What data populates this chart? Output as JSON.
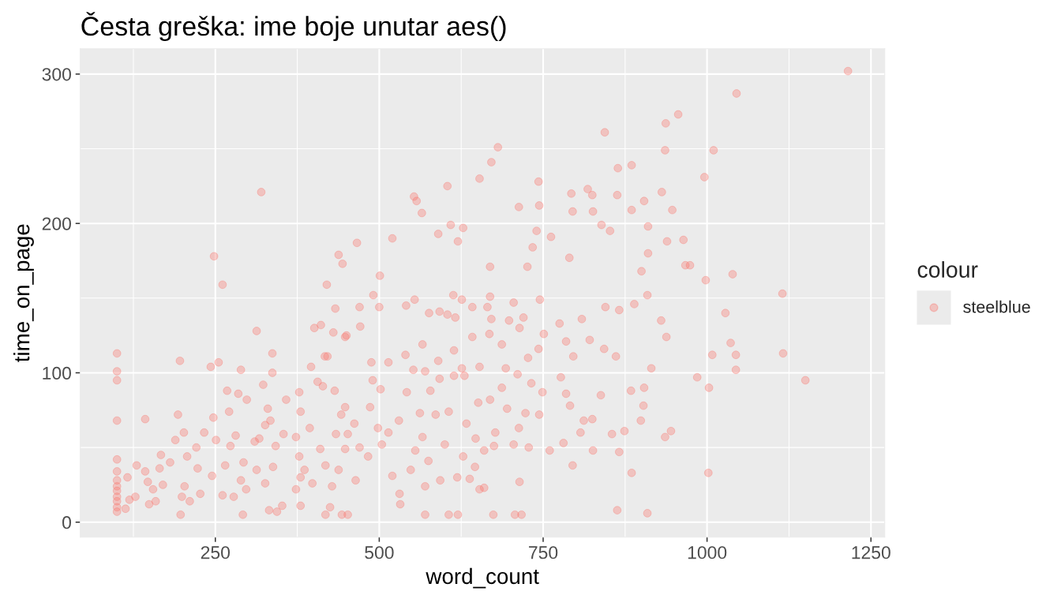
{
  "chart_data": {
    "type": "scatter",
    "title": "Česta greška: ime boje unutar aes()",
    "xlabel": "word_count",
    "ylabel": "time_on_page",
    "legend_title": "colour",
    "series": [
      {
        "name": "steelblue",
        "color": "#f8766d",
        "x": [
          1215,
          1045,
          956,
          937,
          936,
          1010,
          996,
          885,
          864,
          863,
          931,
          904,
          885,
          947,
          910,
          939,
          964,
          910,
          967,
          974,
          1039,
          998,
          1115,
          900,
          844,
          681,
          671,
          653,
          743,
          604,
          553,
          557,
          565,
          713,
          744,
          793,
          818,
          825,
          795,
          826,
          839,
          852,
          790,
          609,
          628,
          590,
          620,
          520,
          466,
          740,
          762,
          734,
          501,
          669,
          726,
          320,
          248,
          261,
          438,
          444,
          420,
          1028,
          1036,
          1044,
          1044,
          1008,
          1003,
          985,
          1116,
          1150,
          866,
          889,
          909,
          930,
          938,
          915,
          884,
          904,
          903,
          899,
          874,
          945,
          936,
          866,
          885,
          1002,
          863,
          909,
          861,
          843,
          775,
          809,
          845,
          785,
          821,
          751,
          796,
          777,
          785,
          791,
          838,
          812,
          825,
          807,
          855,
          781,
          760,
          826,
          795,
          743,
          727,
          720,
          745,
          705,
          698,
          714,
          665,
          669,
          671,
          642,
          626,
          613,
          604,
          616,
          592,
          576,
          554,
          541,
          500,
          491,
          470,
          471,
          450,
          488,
          514,
          540,
          566,
          590,
          614,
          642,
          668,
          687,
          552,
          570,
          626,
          653,
          693,
          490,
          502,
          542,
          578,
          592,
          614,
          630,
          651,
          669,
          687,
          711,
          732,
          749,
          723,
          744,
          713,
          695,
          606,
          633,
          647,
          586,
          562,
          530,
          514,
          486,
          462,
          452,
          498,
          570,
          606,
          620,
          674,
          707,
          717,
          452,
          531,
          532,
          570,
          653,
          660,
          714,
          593,
          619,
          638,
          520,
          464,
          548,
          575,
          628,
          646,
          660,
          675,
          705,
          728,
          600,
          555,
          504,
          470,
          483,
          677,
          566,
          100,
          100,
          100,
          100,
          100,
          100,
          100,
          100,
          100,
          100,
          100,
          100,
          100,
          196,
          143,
          193,
          243,
          255,
          313,
          337,
          337,
          289,
          401,
          411,
          433,
          430,
          417,
          268,
          285,
          323,
          271,
          247,
          189,
          167,
          130,
          116,
          113,
          119,
          128,
          149,
          159,
          147,
          155,
          143,
          170,
          199,
          197,
          211,
          227,
          203,
          165,
          181,
          207,
          202,
          221,
          233,
          251,
          223,
          245,
          261,
          278,
          292,
          265,
          289,
          297,
          273,
          281,
          293,
          310,
          317,
          313,
          326,
          332,
          344,
          352,
          338,
          342,
          354,
          326,
          334,
          330,
          298,
          358,
          378,
          380,
          373,
          378,
          386,
          380,
          373,
          380,
          394,
          406,
          414,
          432,
          410,
          418,
          428,
          398,
          425,
          418,
          443,
          438,
          448,
          434,
          442,
          448,
          396,
          421,
          448
        ],
        "values": [
          302,
          287,
          273,
          267,
          249,
          249,
          231,
          239,
          237,
          219,
          221,
          215,
          209,
          209,
          198,
          188,
          189,
          180,
          172,
          172,
          166,
          162,
          153,
          168,
          261,
          251,
          241,
          230,
          228,
          225,
          218,
          215,
          207,
          211,
          212,
          220,
          223,
          219,
          208,
          208,
          199,
          195,
          177,
          199,
          197,
          193,
          188,
          190,
          187,
          195,
          191,
          184,
          165,
          171,
          171,
          221,
          178,
          159,
          179,
          173,
          159,
          140,
          120,
          112,
          102,
          112,
          90,
          97,
          113,
          95,
          142,
          146,
          152,
          135,
          124,
          103,
          88,
          90,
          78,
          68,
          61,
          61,
          57,
          47,
          33,
          33,
          8,
          6,
          111,
          116,
          133,
          136,
          144,
          121,
          122,
          126,
          111,
          97,
          86,
          78,
          85,
          68,
          69,
          60,
          59,
          53,
          48,
          48,
          38,
          116,
          110,
          137,
          149,
          147,
          135,
          130,
          144,
          151,
          136,
          144,
          149,
          152,
          139,
          137,
          141,
          140,
          149,
          145,
          144,
          152,
          144,
          131,
          125,
          107,
          107,
          112,
          119,
          108,
          115,
          124,
          126,
          119,
          102,
          101,
          103,
          104,
          103,
          95,
          89,
          87,
          88,
          96,
          98,
          98,
          80,
          82,
          90,
          99,
          93,
          87,
          73,
          72,
          63,
          76,
          74,
          66,
          56,
          72,
          73,
          68,
          60,
          77,
          66,
          59,
          63,
          5,
          5,
          5,
          5,
          5,
          5,
          5,
          19,
          12,
          24,
          22,
          23,
          27,
          28,
          30,
          29,
          31,
          28,
          35,
          41,
          44,
          37,
          48,
          51,
          52,
          50,
          52,
          48,
          52,
          50,
          44,
          60,
          57,
          113,
          101,
          95,
          68,
          42,
          34,
          28,
          24,
          21,
          17,
          14,
          10,
          7,
          108,
          69,
          72,
          104,
          107,
          128,
          113,
          100,
          102,
          130,
          132,
          143,
          127,
          111,
          88,
          86,
          92,
          74,
          70,
          55,
          45,
          38,
          30,
          9,
          15,
          17,
          12,
          14,
          27,
          22,
          34,
          25,
          17,
          5,
          14,
          19,
          24,
          36,
          40,
          44,
          60,
          50,
          60,
          55,
          36,
          31,
          18,
          17,
          5,
          38,
          28,
          22,
          51,
          58,
          40,
          54,
          56,
          35,
          26,
          8,
          7,
          11,
          37,
          51,
          59,
          65,
          68,
          76,
          82,
          82,
          87,
          74,
          57,
          44,
          35,
          30,
          22,
          11,
          63,
          94,
          91,
          88,
          49,
          38,
          24,
          26,
          10,
          5,
          5,
          35,
          49,
          59,
          72,
          77,
          104,
          111,
          124
        ]
      }
    ],
    "xlim": [
      44,
      1271
    ],
    "ylim": [
      -10,
      317
    ],
    "xticks": [
      250,
      500,
      750,
      1000,
      1250
    ],
    "yticks": [
      0,
      100,
      200,
      300
    ],
    "grid": true,
    "legend": "right",
    "marker": "circle"
  }
}
